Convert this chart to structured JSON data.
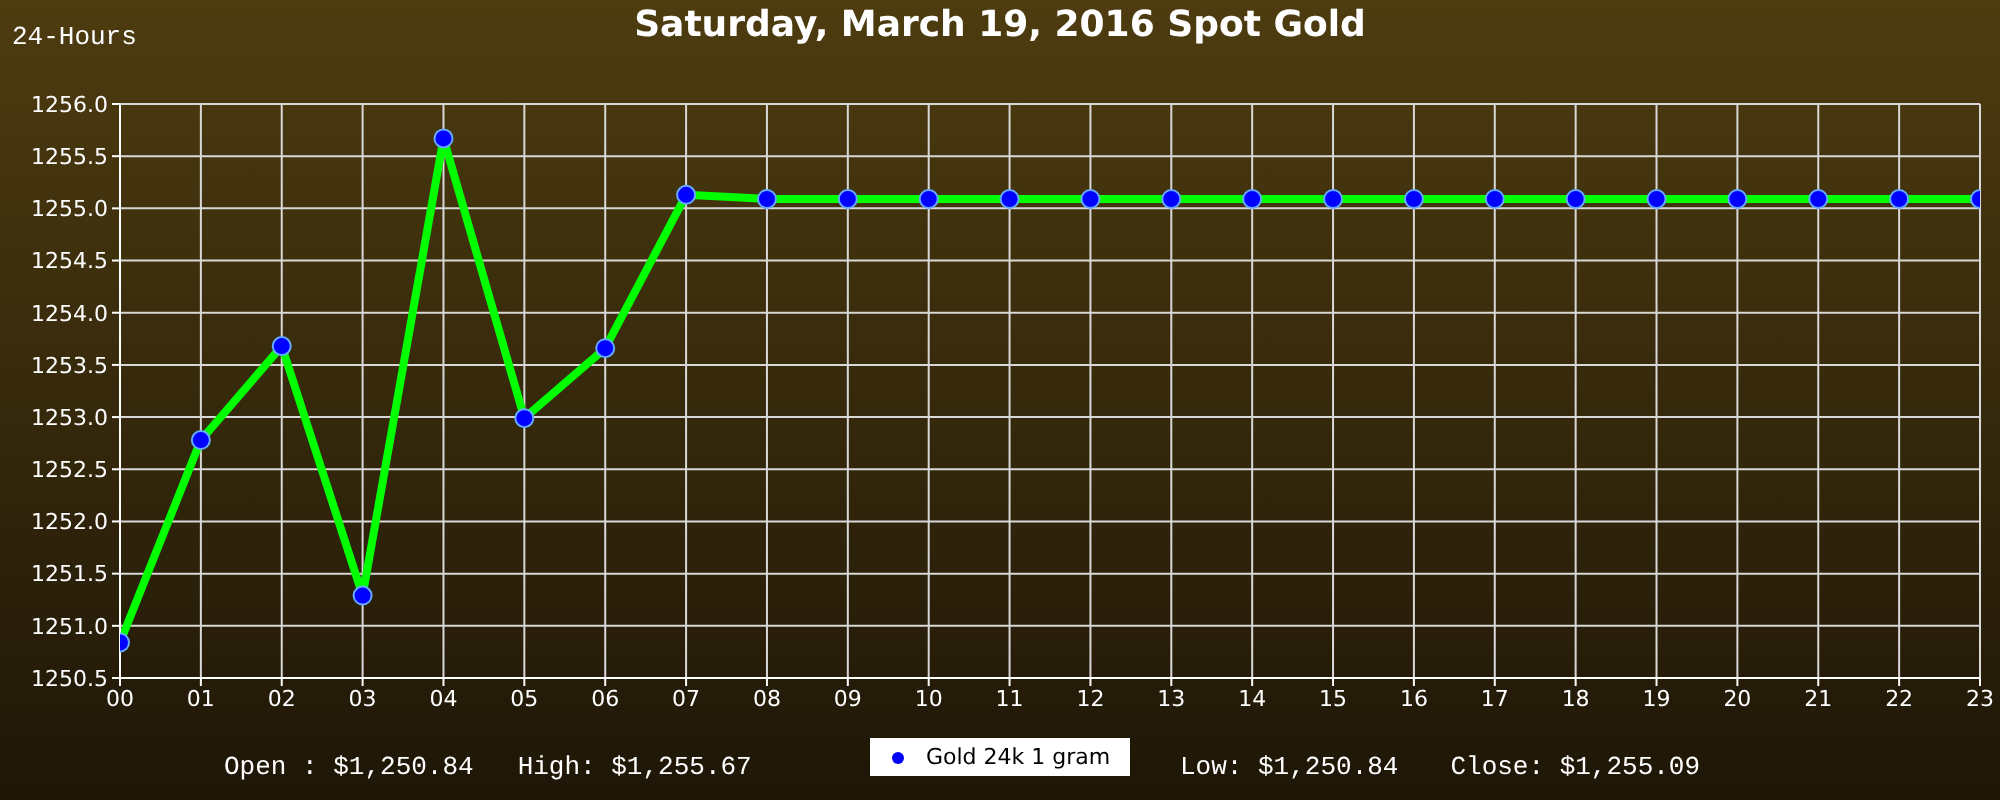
{
  "chart_data": {
    "type": "line",
    "title": "Saturday, March 19, 2016 Spot Gold",
    "annotations": [
      "24-Hours",
      "Open : $1,250.84",
      "High: $1,255.67",
      "Low: $1,250.84",
      "Close: $1,255.09"
    ],
    "categories": [
      "00",
      "01",
      "02",
      "03",
      "04",
      "05",
      "06",
      "07",
      "08",
      "09",
      "10",
      "11",
      "12",
      "13",
      "14",
      "15",
      "16",
      "17",
      "18",
      "19",
      "20",
      "21",
      "22",
      "23"
    ],
    "series": [
      {
        "name": "Gold 24k 1 gram",
        "color": "#00ff00",
        "values": [
          1250.84,
          1252.78,
          1253.68,
          1251.29,
          1255.67,
          1252.99,
          1253.66,
          1255.13,
          1255.09,
          1255.09,
          1255.09,
          1255.09,
          1255.09,
          1255.09,
          1255.09,
          1255.09,
          1255.09,
          1255.09,
          1255.09,
          1255.09,
          1255.09,
          1255.09,
          1255.09,
          1255.09
        ]
      }
    ],
    "ylim": [
      1250.5,
      1256
    ],
    "yticks": [
      1250.5,
      {
        "value": 1251,
        "label": "1251.0"
      },
      1251.5,
      {
        "value": 1252,
        "label": "1252.0"
      },
      1252.5,
      {
        "value": 1253,
        "label": "1253.0"
      },
      1253.5,
      {
        "value": 1254,
        "label": "1254.0"
      },
      1254.5,
      {
        "value": 1255,
        "label": "1255.0"
      },
      1255.5,
      {
        "value": 1256,
        "label": "1256.0"
      }
    ],
    "grid": true,
    "legend": "bottom",
    "marker": "circle",
    "line_style": "solid"
  }
}
